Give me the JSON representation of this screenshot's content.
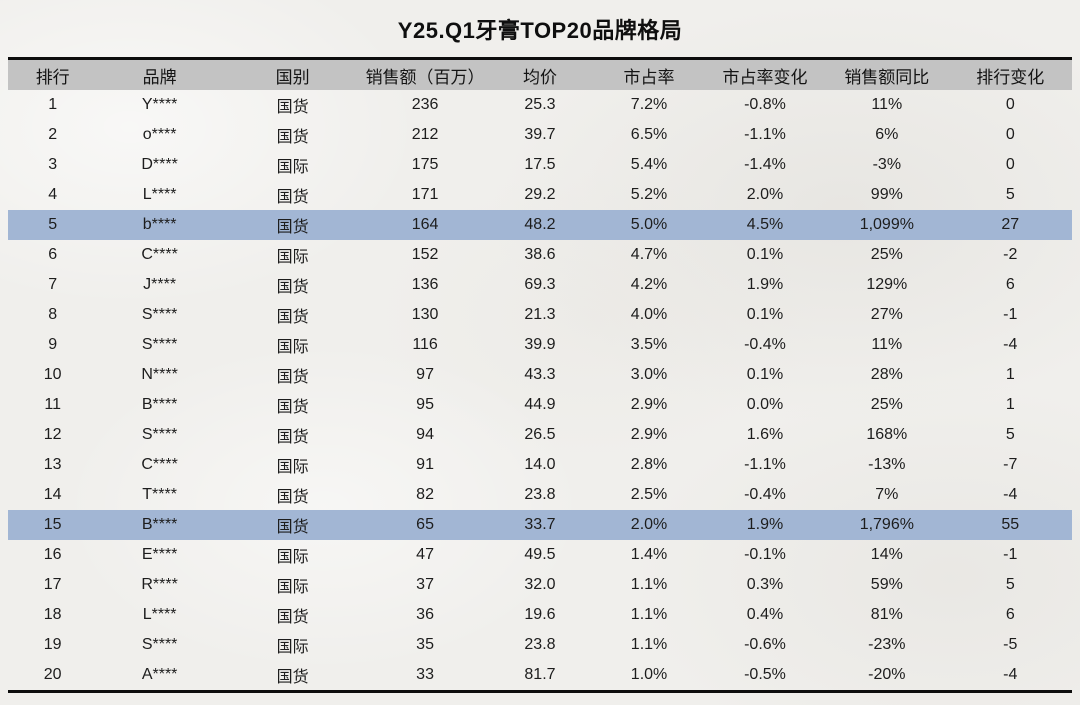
{
  "title": "Y25.Q1牙膏TOP20品牌格局",
  "chart_data": {
    "type": "table",
    "title": "Y25.Q1牙膏TOP20品牌格局",
    "columns": [
      "排行",
      "品牌",
      "国别",
      "销售额（百万）",
      "均价",
      "市占率",
      "市占率变化",
      "销售额同比",
      "排行变化"
    ],
    "rows": [
      [
        "1",
        "Y****",
        "国货",
        "236",
        "25.3",
        "7.2%",
        "-0.8%",
        "11%",
        "0"
      ],
      [
        "2",
        "o****",
        "国货",
        "212",
        "39.7",
        "6.5%",
        "-1.1%",
        "6%",
        "0"
      ],
      [
        "3",
        "D****",
        "国际",
        "175",
        "17.5",
        "5.4%",
        "-1.4%",
        "-3%",
        "0"
      ],
      [
        "4",
        "L****",
        "国货",
        "171",
        "29.2",
        "5.2%",
        "2.0%",
        "99%",
        "5"
      ],
      [
        "5",
        "b****",
        "国货",
        "164",
        "48.2",
        "5.0%",
        "4.5%",
        "1,099%",
        "27"
      ],
      [
        "6",
        "C****",
        "国际",
        "152",
        "38.6",
        "4.7%",
        "0.1%",
        "25%",
        "-2"
      ],
      [
        "7",
        "J****",
        "国货",
        "136",
        "69.3",
        "4.2%",
        "1.9%",
        "129%",
        "6"
      ],
      [
        "8",
        "S****",
        "国货",
        "130",
        "21.3",
        "4.0%",
        "0.1%",
        "27%",
        "-1"
      ],
      [
        "9",
        "S****",
        "国际",
        "116",
        "39.9",
        "3.5%",
        "-0.4%",
        "11%",
        "-4"
      ],
      [
        "10",
        "N****",
        "国货",
        "97",
        "43.3",
        "3.0%",
        "0.1%",
        "28%",
        "1"
      ],
      [
        "11",
        "B****",
        "国货",
        "95",
        "44.9",
        "2.9%",
        "0.0%",
        "25%",
        "1"
      ],
      [
        "12",
        "S****",
        "国货",
        "94",
        "26.5",
        "2.9%",
        "1.6%",
        "168%",
        "5"
      ],
      [
        "13",
        "C****",
        "国际",
        "91",
        "14.0",
        "2.8%",
        "-1.1%",
        "-13%",
        "-7"
      ],
      [
        "14",
        "T****",
        "国货",
        "82",
        "23.8",
        "2.5%",
        "-0.4%",
        "7%",
        "-4"
      ],
      [
        "15",
        "B****",
        "国货",
        "65",
        "33.7",
        "2.0%",
        "1.9%",
        "1,796%",
        "55"
      ],
      [
        "16",
        "E****",
        "国际",
        "47",
        "49.5",
        "1.4%",
        "-0.1%",
        "14%",
        "-1"
      ],
      [
        "17",
        "R****",
        "国际",
        "37",
        "32.0",
        "1.1%",
        "0.3%",
        "59%",
        "5"
      ],
      [
        "18",
        "L****",
        "国货",
        "36",
        "19.6",
        "1.1%",
        "0.4%",
        "81%",
        "6"
      ],
      [
        "19",
        "S****",
        "国际",
        "35",
        "23.8",
        "1.1%",
        "-0.6%",
        "-23%",
        "-5"
      ],
      [
        "20",
        "A****",
        "国货",
        "33",
        "81.7",
        "1.0%",
        "-0.5%",
        "-20%",
        "-4"
      ]
    ],
    "highlighted_rank_rows": [
      5,
      15
    ],
    "layout_hints": {
      "grid": "off",
      "row_striping": "none",
      "alignment": "center"
    },
    "colors": {
      "highlight_row": "#a2b6d4",
      "header_bg": "#c3c3c3",
      "border": "#0d0d0d",
      "text": "#1d1d1d"
    }
  }
}
